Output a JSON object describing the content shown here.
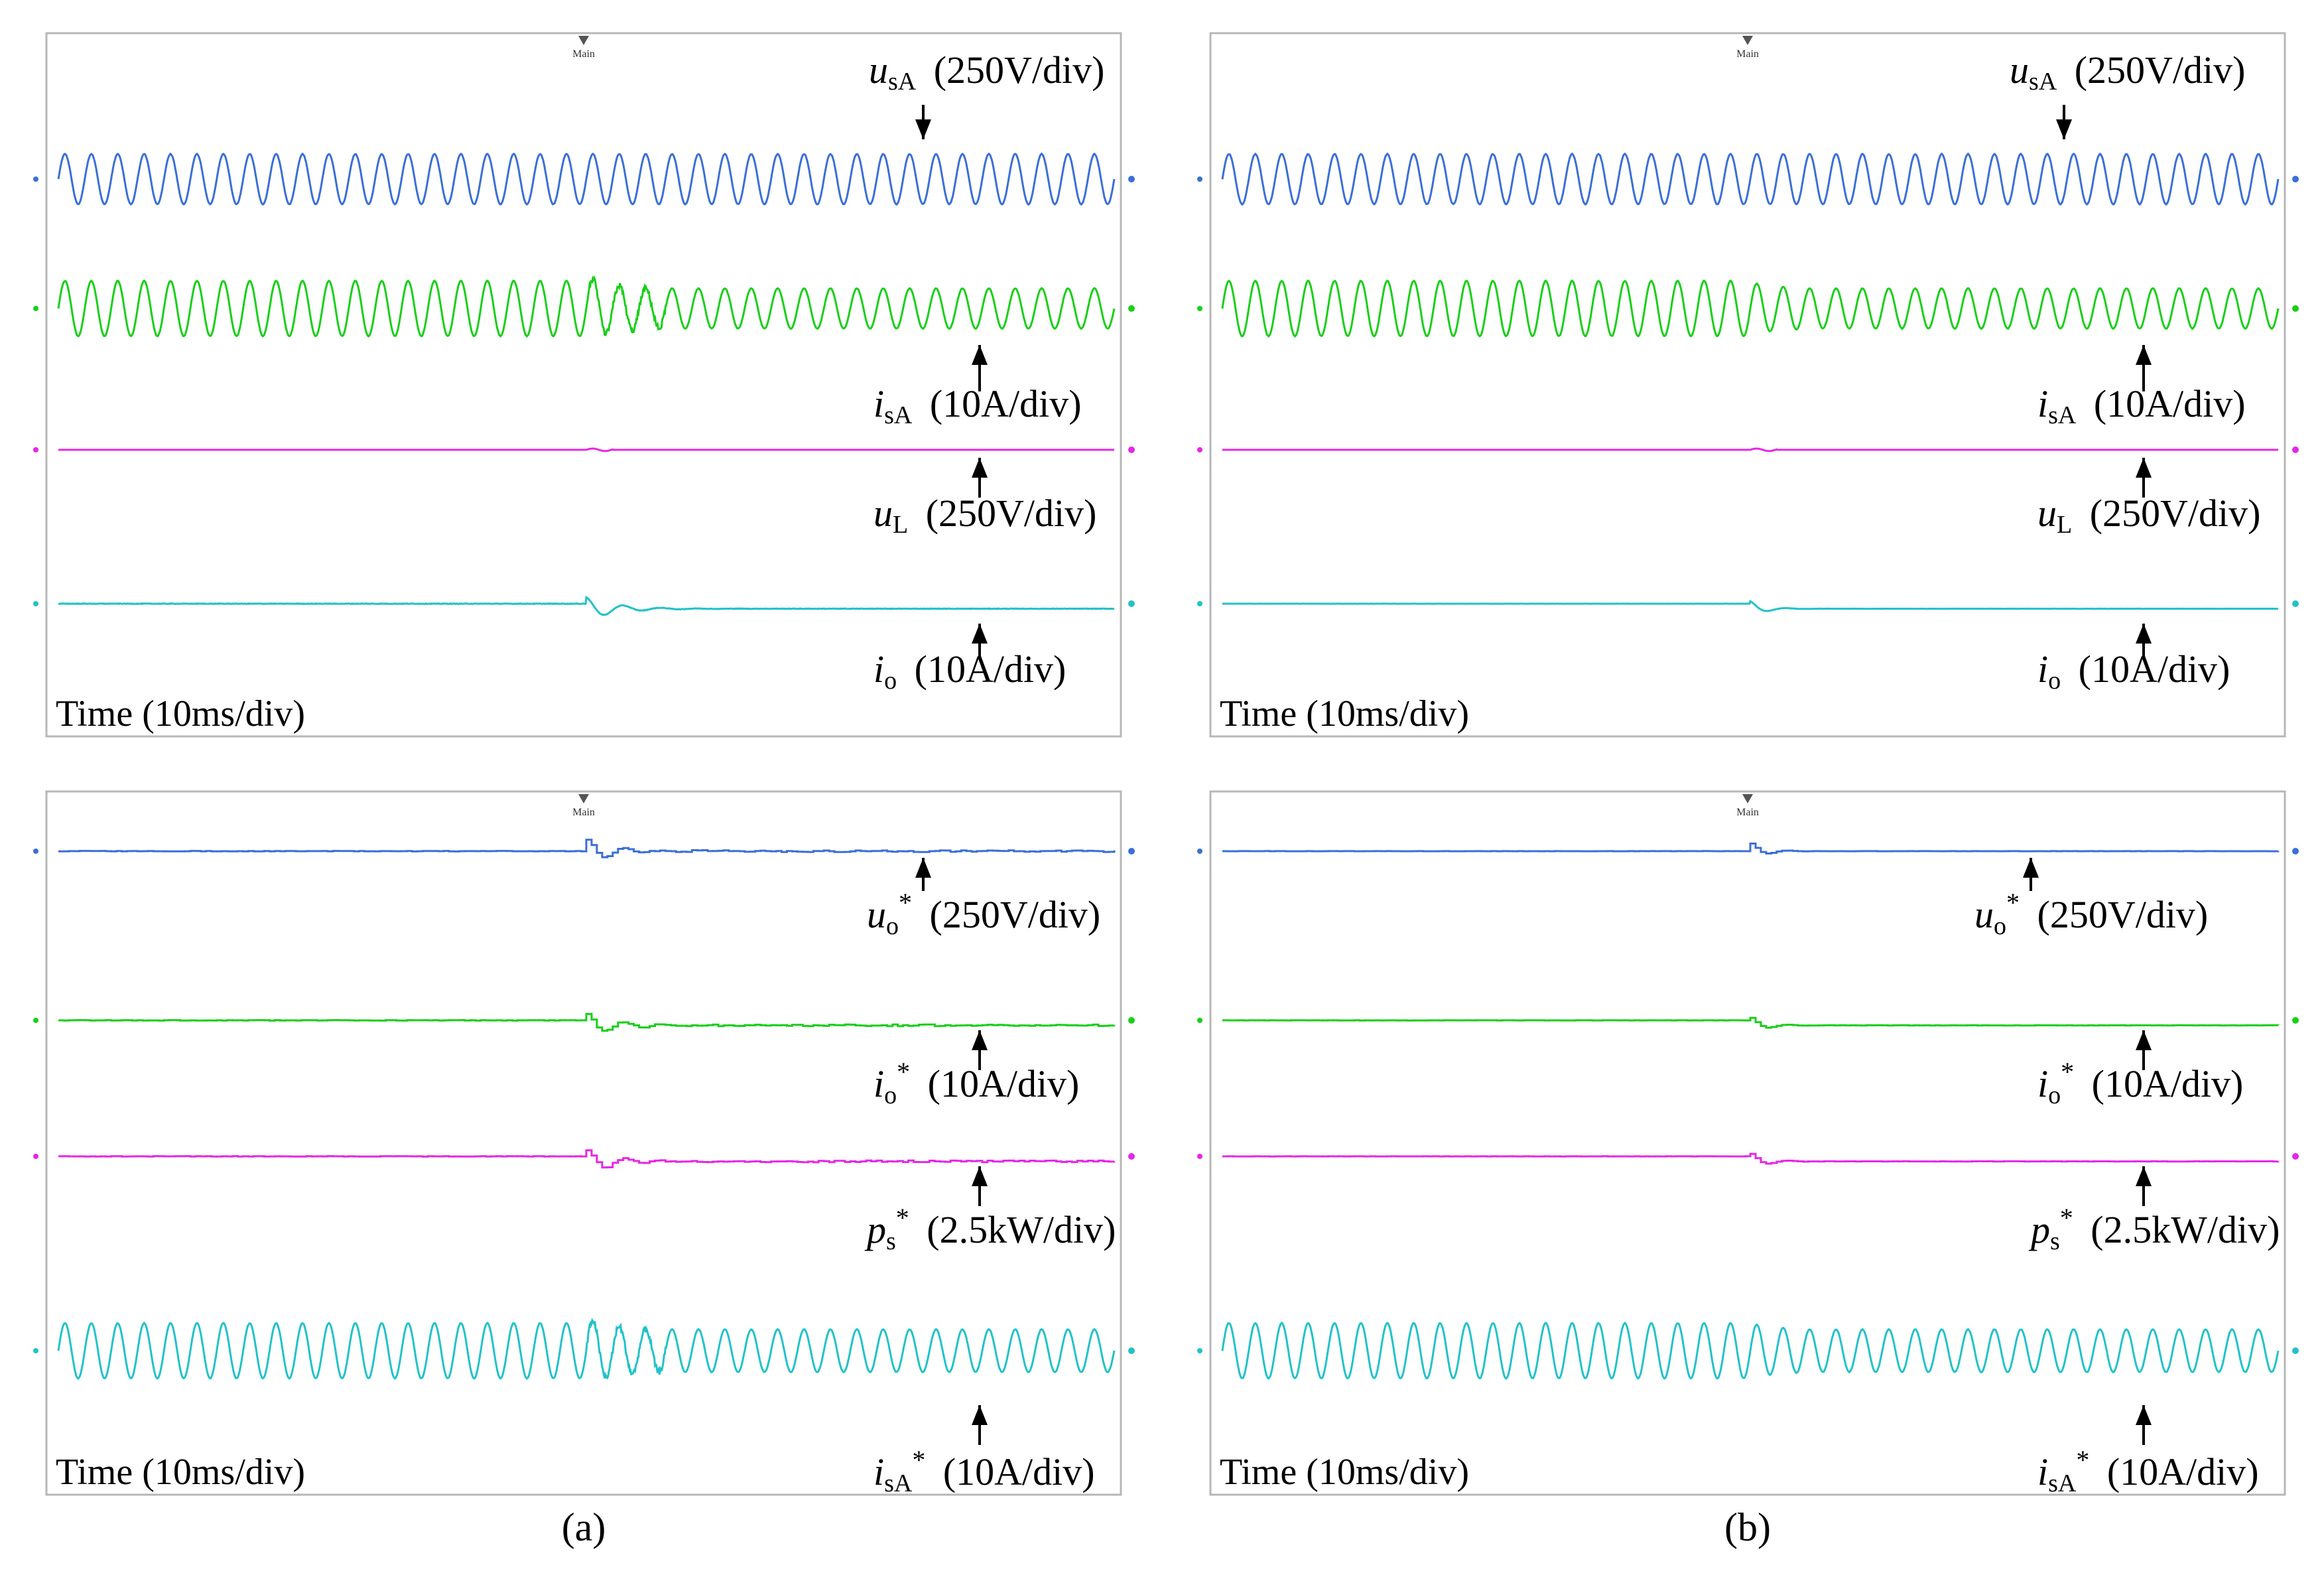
{
  "figure": {
    "captions": [
      "(a)",
      "(b)"
    ],
    "marker_text": "Main",
    "colors": {
      "blue": "#3b6fd6",
      "green": "#19cf19",
      "magenta": "#e627e6",
      "cyan": "#22c2c8",
      "arrow": "#000000",
      "frame": "#b7b7b7"
    }
  },
  "chart_data": [
    {
      "id": "a-top",
      "column": "a",
      "type": "line",
      "title": "",
      "xlabel": "Time (10ms/div)",
      "x_unit": "ms",
      "x_range": [
        0,
        100
      ],
      "step_time_ms": 50,
      "grid": false,
      "series": [
        {
          "name": "u_sA",
          "label_main": "u",
          "label_sub": "sA",
          "label_sup": "",
          "label_scale": "(250V/div)",
          "color": "blue",
          "kind": "sine",
          "freq_hz": 400,
          "amplitude_div": 1.0,
          "arrow_dir": "down"
        },
        {
          "name": "i_sA",
          "label_main": "i",
          "label_sub": "sA",
          "label_sup": "",
          "label_scale": "(10A/div)",
          "color": "green",
          "kind": "sine-step",
          "freq_hz": 400,
          "amplitude_before_div": 1.1,
          "amplitude_after_div": 0.8,
          "transient": "heavy",
          "arrow_dir": "up"
        },
        {
          "name": "u_L",
          "label_main": "u",
          "label_sub": "L",
          "label_sup": "",
          "label_scale": "(250V/div)",
          "color": "magenta",
          "kind": "flat",
          "transient": "small",
          "arrow_dir": "up"
        },
        {
          "name": "i_o",
          "label_main": "i",
          "label_sub": "o",
          "label_sup": "",
          "label_scale": "(10A/div)",
          "color": "cyan",
          "kind": "step",
          "level_before_div": 0.0,
          "level_after_div": -0.2,
          "transient": "heavy",
          "arrow_dir": "up"
        }
      ]
    },
    {
      "id": "b-top",
      "column": "b",
      "type": "line",
      "title": "",
      "xlabel": "Time (10ms/div)",
      "x_unit": "ms",
      "x_range": [
        0,
        100
      ],
      "step_time_ms": 50,
      "grid": false,
      "series": [
        {
          "name": "u_sA",
          "label_main": "u",
          "label_sub": "sA",
          "label_sup": "",
          "label_scale": "(250V/div)",
          "color": "blue",
          "kind": "sine",
          "freq_hz": 400,
          "amplitude_div": 1.0,
          "arrow_dir": "down"
        },
        {
          "name": "i_sA",
          "label_main": "i",
          "label_sub": "sA",
          "label_sup": "",
          "label_scale": "(10A/div)",
          "color": "green",
          "kind": "sine-step",
          "freq_hz": 400,
          "amplitude_before_div": 1.1,
          "amplitude_after_div": 0.8,
          "transient": "light",
          "arrow_dir": "up"
        },
        {
          "name": "u_L",
          "label_main": "u",
          "label_sub": "L",
          "label_sup": "",
          "label_scale": "(250V/div)",
          "color": "magenta",
          "kind": "flat",
          "transient": "small",
          "arrow_dir": "up"
        },
        {
          "name": "i_o",
          "label_main": "i",
          "label_sub": "o",
          "label_sup": "",
          "label_scale": "(10A/div)",
          "color": "cyan",
          "kind": "step",
          "level_before_div": 0.0,
          "level_after_div": -0.2,
          "transient": "light",
          "arrow_dir": "up"
        }
      ]
    },
    {
      "id": "a-bottom",
      "column": "a",
      "type": "line",
      "title": "",
      "xlabel": "Time (10ms/div)",
      "x_unit": "ms",
      "x_range": [
        0,
        100
      ],
      "step_time_ms": 50,
      "grid": false,
      "series": [
        {
          "name": "u_o*",
          "label_main": "u",
          "label_sub": "o",
          "label_sup": "*",
          "label_scale": "(250V/div)",
          "color": "blue",
          "kind": "stair",
          "level_before_div": 0.0,
          "level_after_div": 0.0,
          "transient": "heavy",
          "arrow_dir": "up"
        },
        {
          "name": "i_o*",
          "label_main": "i",
          "label_sub": "o",
          "label_sup": "*",
          "label_scale": "(10A/div)",
          "color": "green",
          "kind": "stair",
          "level_before_div": 0.0,
          "level_after_div": -0.2,
          "transient": "heavy",
          "arrow_dir": "up"
        },
        {
          "name": "p_s*",
          "label_main": "p",
          "label_sub": "s",
          "label_sup": "*",
          "label_scale": "(2.5kW/div)",
          "color": "magenta",
          "kind": "stair",
          "level_before_div": 0.0,
          "level_after_div": -0.2,
          "transient": "heavy",
          "arrow_dir": "up"
        },
        {
          "name": "i_sA*",
          "label_main": "i",
          "label_sub": "sA",
          "label_sup": "*",
          "label_scale": "(10A/div)",
          "color": "cyan",
          "kind": "sine-step",
          "freq_hz": 400,
          "amplitude_before_div": 1.1,
          "amplitude_after_div": 0.85,
          "transient": "heavy",
          "arrow_dir": "up"
        }
      ]
    },
    {
      "id": "b-bottom",
      "column": "b",
      "type": "line",
      "title": "",
      "xlabel": "Time (10ms/div)",
      "x_unit": "ms",
      "x_range": [
        0,
        100
      ],
      "step_time_ms": 50,
      "grid": false,
      "series": [
        {
          "name": "u_o*",
          "label_main": "u",
          "label_sub": "o",
          "label_sup": "*",
          "label_scale": "(250V/div)",
          "color": "blue",
          "kind": "stair",
          "level_before_div": 0.0,
          "level_after_div": 0.0,
          "transient": "light",
          "arrow_dir": "up"
        },
        {
          "name": "i_o*",
          "label_main": "i",
          "label_sub": "o",
          "label_sup": "*",
          "label_scale": "(10A/div)",
          "color": "green",
          "kind": "stair",
          "level_before_div": 0.0,
          "level_after_div": -0.2,
          "transient": "light",
          "arrow_dir": "up"
        },
        {
          "name": "p_s*",
          "label_main": "p",
          "label_sub": "s",
          "label_sup": "*",
          "label_scale": "(2.5kW/div)",
          "color": "magenta",
          "kind": "stair",
          "level_before_div": 0.0,
          "level_after_div": -0.2,
          "transient": "light",
          "arrow_dir": "up"
        },
        {
          "name": "i_sA*",
          "label_main": "i",
          "label_sub": "sA",
          "label_sup": "*",
          "label_scale": "(10A/div)",
          "color": "cyan",
          "kind": "sine-step",
          "freq_hz": 400,
          "amplitude_before_div": 1.1,
          "amplitude_after_div": 0.85,
          "transient": "light",
          "arrow_dir": "up"
        }
      ]
    }
  ]
}
